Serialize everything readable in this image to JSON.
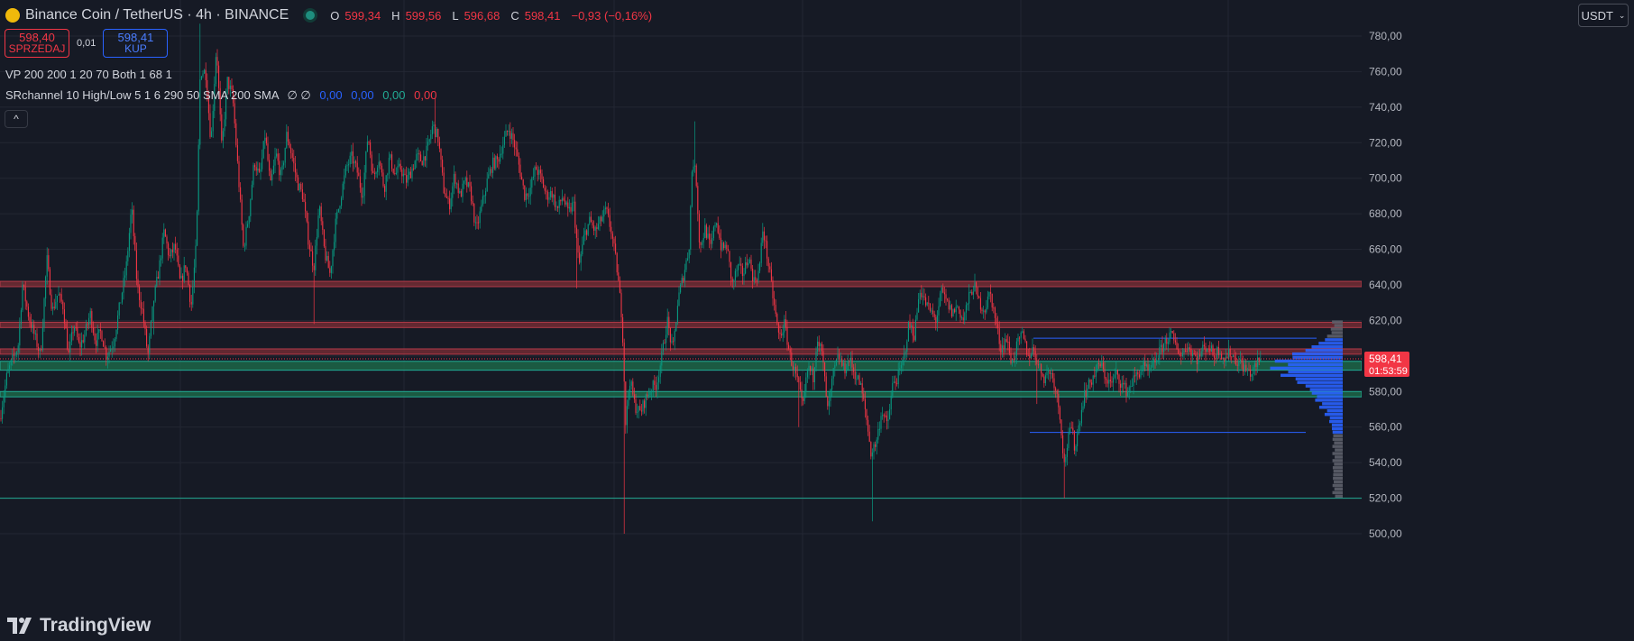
{
  "header": {
    "symbol_title": "Binance Coin / TetherUS · 4h · BINANCE",
    "ohlc": [
      {
        "label": "O",
        "value": "599,34"
      },
      {
        "label": "H",
        "value": "599,56"
      },
      {
        "label": "L",
        "value": "596,68"
      },
      {
        "label": "C",
        "value": "598,41"
      }
    ],
    "change": "−0,93 (−0,16%)"
  },
  "trade": {
    "sell_price": "598,40",
    "sell_label": "SPRZEDAJ",
    "spread": "0,01",
    "buy_price": "598,41",
    "buy_label": "KUP"
  },
  "indicators": {
    "vp": "VP 200 200 1 20 70 Both 1 68 1",
    "sr": "SRchannel 10 High/Low 5 1 6 290 50 SMA 200 SMA",
    "sr_symbols": "∅ ∅",
    "sr_values": [
      "0,00",
      "0,00",
      "0,00",
      "0,00"
    ]
  },
  "currency_button": "USDT",
  "brand": "TradingView",
  "price_axis": {
    "ticks": [
      "780,00",
      "760,00",
      "740,00",
      "720,00",
      "700,00",
      "680,00",
      "660,00",
      "640,00",
      "620,00",
      "600,00",
      "580,00",
      "560,00",
      "540,00",
      "520,00",
      "500,00"
    ],
    "current_price": "598,41",
    "countdown": "01:53:59"
  },
  "colors": {
    "background": "#161a25",
    "up": "#089981",
    "down": "#f23645",
    "resistance_zone": "#7d2e36",
    "support_zone": "#1d6a4a",
    "vp_blue": "#2962ff",
    "vp_gray": "#5d606b"
  },
  "chart_data": {
    "type": "candlestick",
    "interval": "4h",
    "ylim": [
      497,
      787
    ],
    "current_price": 598.41,
    "resistance_zones": [
      [
        639,
        642
      ],
      [
        616,
        619
      ],
      [
        601,
        604
      ]
    ],
    "support_zones": [
      [
        592,
        597
      ],
      [
        577,
        580
      ]
    ],
    "horizontal_lines": [
      520
    ],
    "value_area_lines": [
      610,
      557
    ],
    "path_anchors": [
      [
        0,
        565
      ],
      [
        8,
        590
      ],
      [
        14,
        598
      ],
      [
        20,
        605
      ],
      [
        25,
        640
      ],
      [
        32,
        622
      ],
      [
        38,
        612
      ],
      [
        45,
        600
      ],
      [
        52,
        655
      ],
      [
        58,
        625
      ],
      [
        64,
        635
      ],
      [
        70,
        628
      ],
      [
        76,
        600
      ],
      [
        82,
        618
      ],
      [
        88,
        605
      ],
      [
        94,
        612
      ],
      [
        100,
        624
      ],
      [
        106,
        608
      ],
      [
        112,
        614
      ],
      [
        118,
        600
      ],
      [
        126,
        608
      ],
      [
        134,
        632
      ],
      [
        140,
        650
      ],
      [
        146,
        684
      ],
      [
        152,
        640
      ],
      [
        158,
        625
      ],
      [
        164,
        600
      ],
      [
        170,
        630
      ],
      [
        176,
        648
      ],
      [
        182,
        670
      ],
      [
        188,
        655
      ],
      [
        194,
        662
      ],
      [
        200,
        640
      ],
      [
        206,
        652
      ],
      [
        212,
        628
      ],
      [
        218,
        665
      ],
      [
        222,
        760
      ],
      [
        228,
        760
      ],
      [
        234,
        720
      ],
      [
        240,
        775
      ],
      [
        246,
        716
      ],
      [
        252,
        755
      ],
      [
        258,
        746
      ],
      [
        264,
        704
      ],
      [
        270,
        660
      ],
      [
        276,
        680
      ],
      [
        282,
        710
      ],
      [
        288,
        700
      ],
      [
        294,
        725
      ],
      [
        300,
        695
      ],
      [
        306,
        714
      ],
      [
        312,
        700
      ],
      [
        318,
        725
      ],
      [
        324,
        712
      ],
      [
        330,
        697
      ],
      [
        336,
        690
      ],
      [
        342,
        665
      ],
      [
        348,
        650
      ],
      [
        354,
        684
      ],
      [
        360,
        658
      ],
      [
        366,
        646
      ],
      [
        372,
        674
      ],
      [
        378,
        690
      ],
      [
        384,
        706
      ],
      [
        390,
        712
      ],
      [
        396,
        704
      ],
      [
        402,
        690
      ],
      [
        408,
        725
      ],
      [
        414,
        700
      ],
      [
        420,
        712
      ],
      [
        426,
        694
      ],
      [
        432,
        712
      ],
      [
        438,
        702
      ],
      [
        444,
        706
      ],
      [
        450,
        698
      ],
      [
        456,
        704
      ],
      [
        462,
        712
      ],
      [
        468,
        710
      ],
      [
        474,
        716
      ],
      [
        480,
        730
      ],
      [
        486,
        722
      ],
      [
        492,
        694
      ],
      [
        498,
        684
      ],
      [
        504,
        702
      ],
      [
        510,
        690
      ],
      [
        516,
        698
      ],
      [
        522,
        692
      ],
      [
        528,
        670
      ],
      [
        534,
        684
      ],
      [
        540,
        698
      ],
      [
        546,
        708
      ],
      [
        552,
        710
      ],
      [
        558,
        720
      ],
      [
        564,
        728
      ],
      [
        570,
        720
      ],
      [
        576,
        706
      ],
      [
        582,
        690
      ],
      [
        588,
        694
      ],
      [
        594,
        706
      ],
      [
        600,
        700
      ],
      [
        606,
        690
      ],
      [
        612,
        692
      ],
      [
        618,
        682
      ],
      [
        624,
        690
      ],
      [
        630,
        680
      ],
      [
        636,
        686
      ],
      [
        642,
        650
      ],
      [
        648,
        668
      ],
      [
        654,
        676
      ],
      [
        660,
        670
      ],
      [
        666,
        676
      ],
      [
        672,
        682
      ],
      [
        678,
        670
      ],
      [
        684,
        650
      ],
      [
        690,
        620
      ],
      [
        694,
        560
      ],
      [
        698,
        588
      ],
      [
        704,
        572
      ],
      [
        710,
        568
      ],
      [
        716,
        576
      ],
      [
        722,
        582
      ],
      [
        728,
        584
      ],
      [
        734,
        600
      ],
      [
        740,
        620
      ],
      [
        746,
        602
      ],
      [
        752,
        632
      ],
      [
        758,
        646
      ],
      [
        764,
        660
      ],
      [
        768,
        712
      ],
      [
        772,
        700
      ],
      [
        776,
        660
      ],
      [
        782,
        672
      ],
      [
        788,
        660
      ],
      [
        794,
        678
      ],
      [
        800,
        660
      ],
      [
        806,
        662
      ],
      [
        812,
        640
      ],
      [
        818,
        650
      ],
      [
        824,
        646
      ],
      [
        830,
        656
      ],
      [
        836,
        642
      ],
      [
        842,
        648
      ],
      [
        846,
        672
      ],
      [
        852,
        652
      ],
      [
        858,
        630
      ],
      [
        864,
        610
      ],
      [
        870,
        618
      ],
      [
        876,
        600
      ],
      [
        882,
        590
      ],
      [
        886,
        582
      ],
      [
        890,
        570
      ],
      [
        896,
        594
      ],
      [
        902,
        588
      ],
      [
        906,
        612
      ],
      [
        912,
        600
      ],
      [
        918,
        568
      ],
      [
        924,
        590
      ],
      [
        930,
        600
      ],
      [
        936,
        592
      ],
      [
        942,
        598
      ],
      [
        948,
        590
      ],
      [
        954,
        584
      ],
      [
        960,
        568
      ],
      [
        966,
        545
      ],
      [
        972,
        552
      ],
      [
        978,
        570
      ],
      [
        984,
        560
      ],
      [
        990,
        584
      ],
      [
        996,
        588
      ],
      [
        1002,
        598
      ],
      [
        1008,
        618
      ],
      [
        1014,
        612
      ],
      [
        1020,
        638
      ],
      [
        1026,
        630
      ],
      [
        1032,
        625
      ],
      [
        1038,
        620
      ],
      [
        1044,
        636
      ],
      [
        1050,
        630
      ],
      [
        1056,
        624
      ],
      [
        1062,
        628
      ],
      [
        1068,
        620
      ],
      [
        1074,
        632
      ],
      [
        1080,
        640
      ],
      [
        1086,
        630
      ],
      [
        1092,
        626
      ],
      [
        1098,
        636
      ],
      [
        1104,
        620
      ],
      [
        1110,
        604
      ],
      [
        1116,
        610
      ],
      [
        1122,
        596
      ],
      [
        1128,
        606
      ],
      [
        1134,
        612
      ],
      [
        1140,
        600
      ],
      [
        1146,
        604
      ],
      [
        1152,
        594
      ],
      [
        1158,
        588
      ],
      [
        1164,
        592
      ],
      [
        1170,
        584
      ],
      [
        1176,
        565
      ],
      [
        1180,
        538
      ],
      [
        1184,
        552
      ],
      [
        1188,
        560
      ],
      [
        1192,
        548
      ],
      [
        1196,
        560
      ],
      [
        1202,
        578
      ],
      [
        1208,
        584
      ],
      [
        1214,
        590
      ],
      [
        1220,
        596
      ],
      [
        1226,
        588
      ],
      [
        1232,
        584
      ],
      [
        1238,
        590
      ],
      [
        1244,
        584
      ],
      [
        1250,
        580
      ],
      [
        1256,
        586
      ],
      [
        1262,
        590
      ],
      [
        1268,
        594
      ],
      [
        1274,
        590
      ],
      [
        1280,
        596
      ],
      [
        1286,
        602
      ],
      [
        1292,
        608
      ],
      [
        1298,
        612
      ],
      [
        1304,
        606
      ],
      [
        1310,
        600
      ],
      [
        1316,
        606
      ],
      [
        1322,
        602
      ],
      [
        1328,
        598
      ],
      [
        1334,
        604
      ],
      [
        1340,
        606
      ],
      [
        1346,
        600
      ],
      [
        1352,
        604
      ],
      [
        1358,
        598
      ],
      [
        1364,
        602
      ],
      [
        1370,
        598
      ],
      [
        1376,
        596
      ],
      [
        1382,
        592
      ],
      [
        1388,
        590
      ],
      [
        1394,
        596
      ],
      [
        1398,
        598.41
      ]
    ]
  }
}
